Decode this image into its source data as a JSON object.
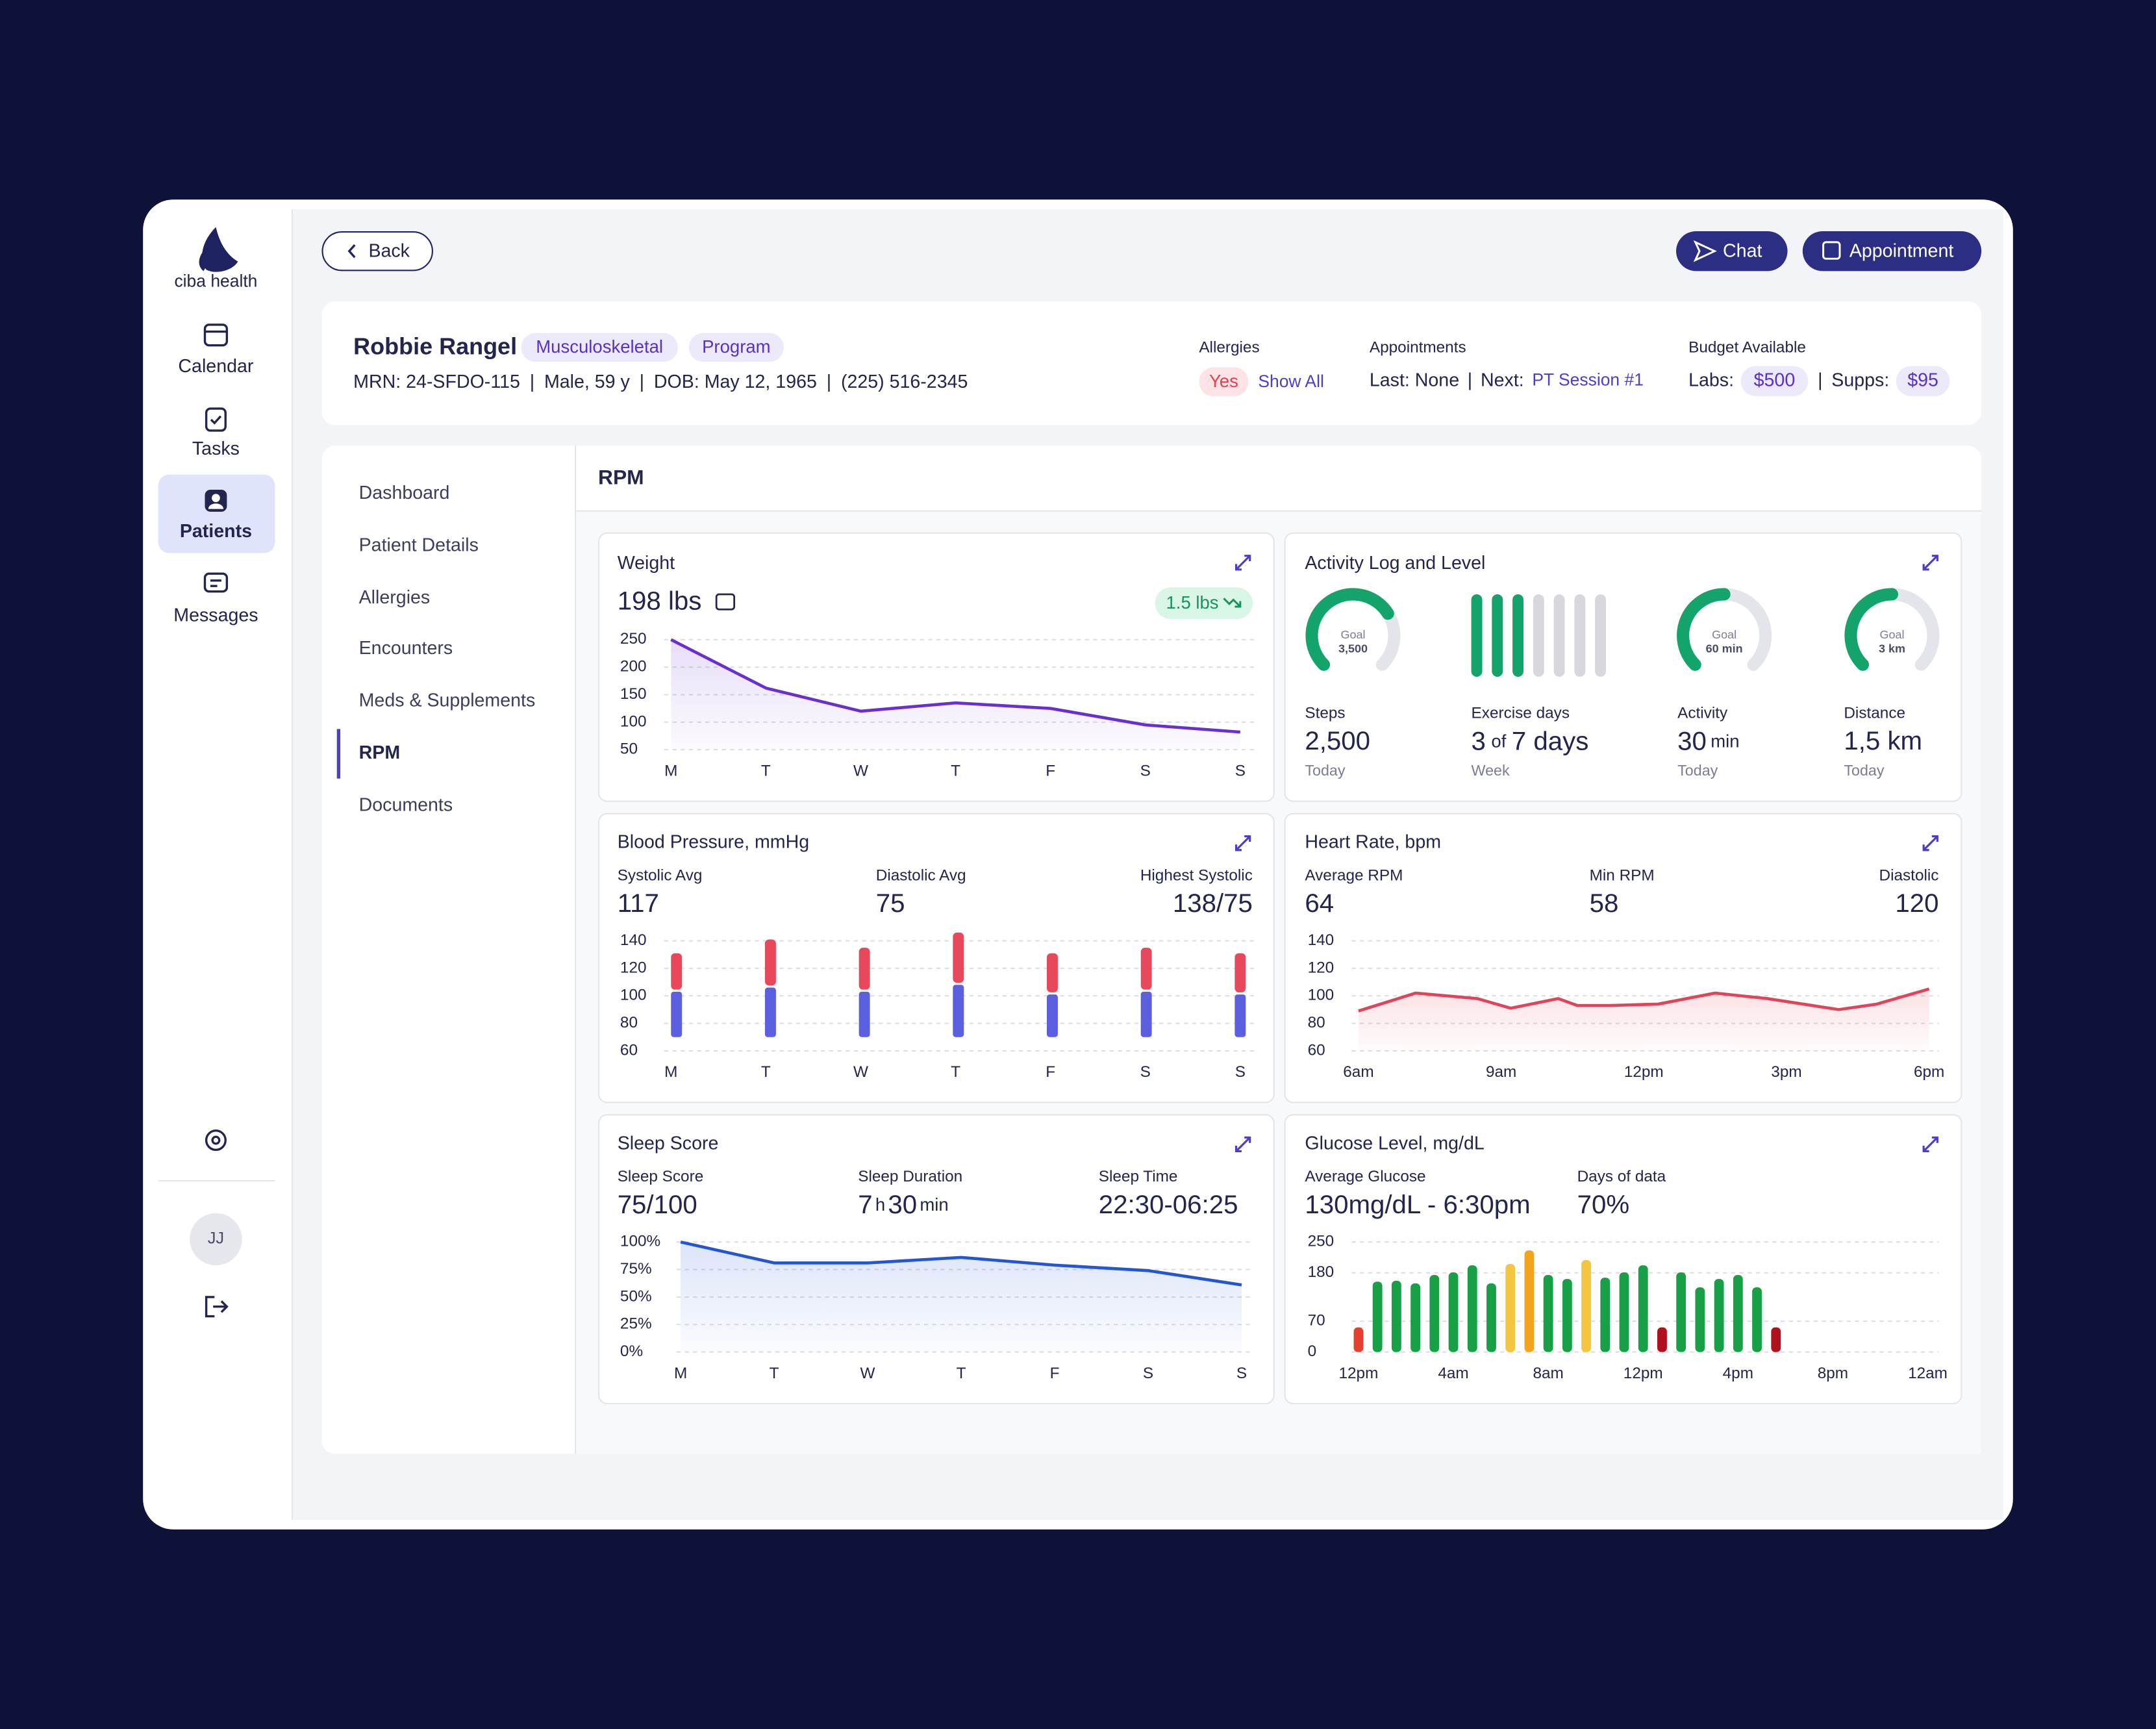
{
  "brand": "ciba health",
  "nav": {
    "items": [
      "Calendar",
      "Tasks",
      "Patients",
      "Messages"
    ],
    "active": "Patients"
  },
  "user_initials": "JJ",
  "toolbar": {
    "back": "Back",
    "chat": "Chat",
    "appointment": "Appointment"
  },
  "patient": {
    "name": "Robbie Rangel",
    "tags": [
      "Musculoskeletal",
      "Program"
    ],
    "details": [
      "MRN: 24-SFDO-115",
      "Male, 59 y",
      "DOB: May 12, 1965",
      "(225) 516-2345"
    ],
    "separator": "|",
    "allergies": {
      "label": "Allergies",
      "value": "Yes",
      "link": "Show All"
    },
    "appointments": {
      "label": "Appointments",
      "last": "Last: None",
      "next_label": "Next:",
      "next": "PT Session #1"
    },
    "budget": {
      "label": "Budget Available",
      "labs_label": "Labs:",
      "labs": "$500",
      "supps_label": "Supps:",
      "supps": "$95"
    }
  },
  "menu": {
    "items": [
      "Dashboard",
      "Patient Details",
      "Allergies",
      "Encounters",
      "Meds & Supplements",
      "RPM",
      "Documents"
    ],
    "active": "RPM"
  },
  "section_title": "RPM",
  "cards": {
    "weight": {
      "value": "198 lbs",
      "change": "1.5 lbs"
    },
    "activity": {
      "title": "Activity Log and Level",
      "goal_word": "Goal",
      "items": [
        {
          "label": "Steps",
          "value": 2500,
          "value_label": "2,500",
          "goal": 3500,
          "goal_label": "3,500",
          "period": "Today"
        },
        {
          "label": "Exercise days",
          "value": 3,
          "of": "of",
          "total": 7,
          "total_label": "7 days",
          "period": "Week"
        },
        {
          "label": "Activity",
          "value": 30,
          "unit": "min",
          "goal": 60,
          "goal_label": "60 min",
          "period": "Today"
        },
        {
          "label": "Distance",
          "value": 1.5,
          "value_label": "1,5 km",
          "goal": 3,
          "goal_label": "3 km",
          "period": "Today"
        }
      ]
    },
    "blood_pressure": {
      "stats": [
        {
          "label": "Systolic Avg",
          "value": 117
        },
        {
          "label": "Diastolic Avg",
          "value": 75
        },
        {
          "label": "Highest Systolic",
          "value": "138/75"
        }
      ]
    },
    "heart_rate": {
      "stats": [
        {
          "label": "Average RPM",
          "value": 64
        },
        {
          "label": "Min RPM",
          "value": 58
        },
        {
          "label": "Diastolic",
          "value": 120
        }
      ]
    },
    "sleep": {
      "stats": [
        {
          "label": "Sleep Score",
          "value": "75/100"
        },
        {
          "label": "Sleep Duration",
          "parts": [
            "7",
            "h",
            "30",
            "min"
          ]
        },
        {
          "label": "Sleep Time",
          "value": "22:30-06:25"
        }
      ]
    },
    "glucose": {
      "stats": [
        {
          "label": "Average Glucose",
          "value": "130mg/dL - 6:30pm"
        },
        {
          "label": "Days of data",
          "value": "70%"
        }
      ]
    }
  },
  "chart_data": [
    {
      "type": "line",
      "title": "Weight",
      "categories": [
        "M",
        "T",
        "W",
        "T",
        "F",
        "S",
        "S"
      ],
      "values": [
        250,
        162,
        120,
        135,
        125,
        95,
        82
      ],
      "ylim": [
        50,
        250
      ],
      "yticks": [
        50,
        100,
        150,
        200,
        250
      ],
      "color": "#6a2fd0",
      "grid": true
    },
    {
      "type": "range_bar",
      "title": "Blood Pressure, mmHg",
      "categories": [
        "M",
        "T",
        "W",
        "T",
        "F",
        "S",
        "S"
      ],
      "low": [
        70,
        70,
        70,
        70,
        70,
        70,
        70
      ],
      "mid": [
        103,
        106,
        103,
        108,
        101,
        103,
        101
      ],
      "high": [
        131,
        141,
        135,
        146,
        131,
        135,
        131
      ],
      "colors": [
        "#5b5fe0",
        "#e8485c"
      ],
      "ylim": [
        60,
        140
      ],
      "yticks": [
        60,
        80,
        100,
        120,
        140
      ],
      "grid": true
    },
    {
      "type": "line",
      "title": "Heart Rate, bpm",
      "x": [
        6,
        7.2,
        8.5,
        9.2,
        10.2,
        10.6,
        11.3,
        12.3,
        13.5,
        14.6,
        16.1,
        16.9,
        18
      ],
      "values": [
        89,
        102,
        98,
        91,
        98,
        93,
        93,
        94,
        102,
        98,
        90,
        94,
        105
      ],
      "xlim": [
        6,
        18
      ],
      "xticks": [
        {
          "value": 6,
          "label": "6am"
        },
        {
          "value": 9,
          "label": "9am"
        },
        {
          "value": 12,
          "label": "12pm"
        },
        {
          "value": 15,
          "label": "3pm"
        },
        {
          "value": 18,
          "label": "6pm"
        }
      ],
      "ylim": [
        60,
        140
      ],
      "yticks": [
        60,
        80,
        100,
        120,
        140
      ],
      "color": "#e0445a",
      "grid": true
    },
    {
      "type": "line",
      "title": "Sleep Score",
      "categories": [
        "M",
        "T",
        "W",
        "T",
        "F",
        "S",
        "S"
      ],
      "values": [
        100,
        81,
        81,
        86,
        79,
        74,
        61
      ],
      "ylim": [
        0,
        100
      ],
      "yticks": [
        {
          "value": 0,
          "label": "0%"
        },
        {
          "value": 25,
          "label": "25%"
        },
        {
          "value": 50,
          "label": "50%"
        },
        {
          "value": 75,
          "label": "75%"
        },
        {
          "value": 100,
          "label": "100%"
        }
      ],
      "color": "#2456d1",
      "grid": true
    },
    {
      "type": "bar",
      "title": "Glucose Level, mg/dL",
      "x": [
        0,
        0.8,
        1.6,
        2.4,
        3.2,
        4,
        4.8,
        5.6,
        6.4,
        7.2,
        8,
        8.8,
        9.6,
        10.4,
        11.2,
        12,
        12.8,
        13.6,
        14.4,
        15.2,
        16,
        16.8,
        17.6
      ],
      "values": [
        56,
        160,
        162,
        156,
        175,
        181,
        197,
        156,
        200,
        231,
        175,
        166,
        209,
        169,
        181,
        197,
        56,
        181,
        147,
        166,
        175,
        147,
        56
      ],
      "colors": [
        "#e5402f",
        "#17a046",
        "#17a046",
        "#17a046",
        "#17a046",
        "#17a046",
        "#17a046",
        "#17a046",
        "#f5c542",
        "#f2a41c",
        "#17a046",
        "#17a046",
        "#f5c542",
        "#17a046",
        "#17a046",
        "#17a046",
        "#b0101c",
        "#17a046",
        "#17a046",
        "#17a046",
        "#17a046",
        "#17a046",
        "#b0101c"
      ],
      "xlim": [
        0,
        24
      ],
      "xticks": [
        {
          "value": 0,
          "label": "12pm"
        },
        {
          "value": 4,
          "label": "4am"
        },
        {
          "value": 8,
          "label": "8am"
        },
        {
          "value": 12,
          "label": "12pm"
        },
        {
          "value": 16,
          "label": "4pm"
        },
        {
          "value": 20,
          "label": "8pm"
        },
        {
          "value": 24,
          "label": "12am"
        }
      ],
      "ylim": [
        0,
        250
      ],
      "yticks": [
        0,
        70,
        180,
        250
      ],
      "grid": true
    }
  ]
}
